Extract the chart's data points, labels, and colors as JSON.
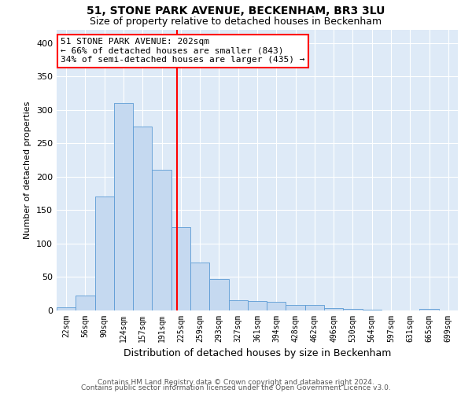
{
  "title": "51, STONE PARK AVENUE, BECKENHAM, BR3 3LU",
  "subtitle": "Size of property relative to detached houses in Beckenham",
  "xlabel": "Distribution of detached houses by size in Beckenham",
  "ylabel": "Number of detached properties",
  "bin_labels": [
    "22sqm",
    "56sqm",
    "90sqm",
    "124sqm",
    "157sqm",
    "191sqm",
    "225sqm",
    "259sqm",
    "293sqm",
    "327sqm",
    "361sqm",
    "394sqm",
    "428sqm",
    "462sqm",
    "496sqm",
    "530sqm",
    "564sqm",
    "597sqm",
    "631sqm",
    "665sqm",
    "699sqm"
  ],
  "bar_heights": [
    5,
    22,
    170,
    310,
    275,
    210,
    125,
    72,
    47,
    15,
    14,
    13,
    8,
    8,
    3,
    2,
    1,
    0,
    0,
    2,
    0
  ],
  "bar_color": "#c5d9f0",
  "bar_edge_color": "#5b9bd5",
  "vline_color": "red",
  "ylim": [
    0,
    420
  ],
  "yticks": [
    0,
    50,
    100,
    150,
    200,
    250,
    300,
    350,
    400
  ],
  "background_color": "#deeaf7",
  "annotation_line1": "51 STONE PARK AVENUE: 202sqm",
  "annotation_line2": "← 66% of detached houses are smaller (843)",
  "annotation_line3": "34% of semi-detached houses are larger (435) →",
  "footer_line1": "Contains HM Land Registry data © Crown copyright and database right 2024.",
  "footer_line2": "Contains public sector information licensed under the Open Government Licence v3.0.",
  "title_fontsize": 10,
  "subtitle_fontsize": 9,
  "xlabel_fontsize": 9,
  "ylabel_fontsize": 8,
  "tick_fontsize": 7,
  "annotation_fontsize": 8,
  "footer_fontsize": 6.5,
  "vline_pos": 5.82
}
